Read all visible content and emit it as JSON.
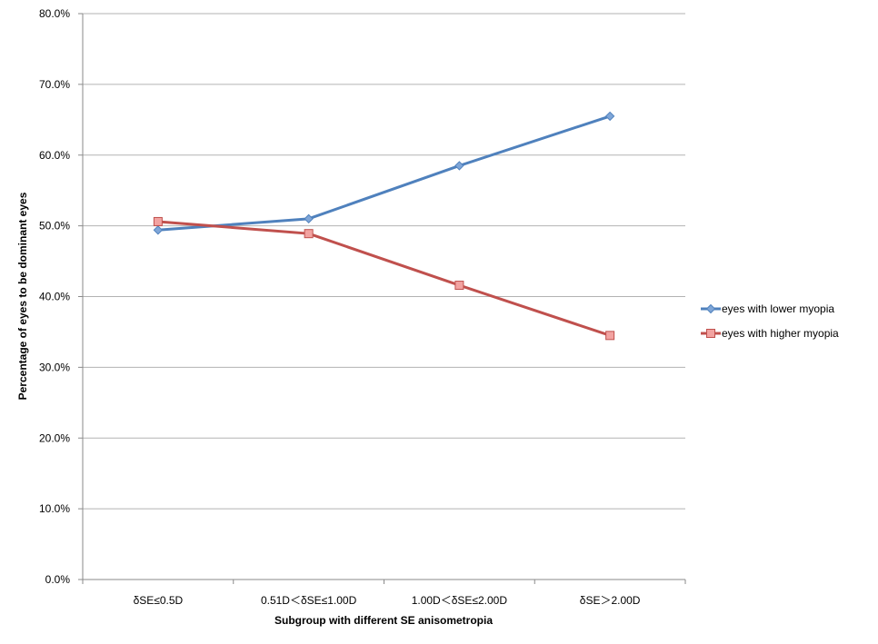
{
  "chart_data": {
    "type": "line",
    "title": "",
    "xlabel": "Subgroup with different SE anisometropia",
    "ylabel": "Percentage of eyes to be dominant eyes",
    "categories": [
      "δSE≤0.5D",
      "0.51D＜δSE≤1.00D",
      "1.00D＜δSE≤2.00D",
      "δSE＞2.00D"
    ],
    "ylim": [
      0,
      80
    ],
    "y_ticks": [
      "0.0%",
      "10.0%",
      "20.0%",
      "30.0%",
      "40.0%",
      "50.0%",
      "60.0%",
      "70.0%",
      "80.0%"
    ],
    "grid": true,
    "legend_position": "right",
    "series": [
      {
        "name": "eyes with lower myopia",
        "marker": "diamond",
        "color": "#4f81bd",
        "values": [
          49.4,
          51.0,
          58.5,
          65.5
        ]
      },
      {
        "name": "eyes with higher myopia",
        "marker": "square",
        "color": "#c0504d",
        "values": [
          50.6,
          48.9,
          41.6,
          34.5
        ]
      }
    ]
  }
}
